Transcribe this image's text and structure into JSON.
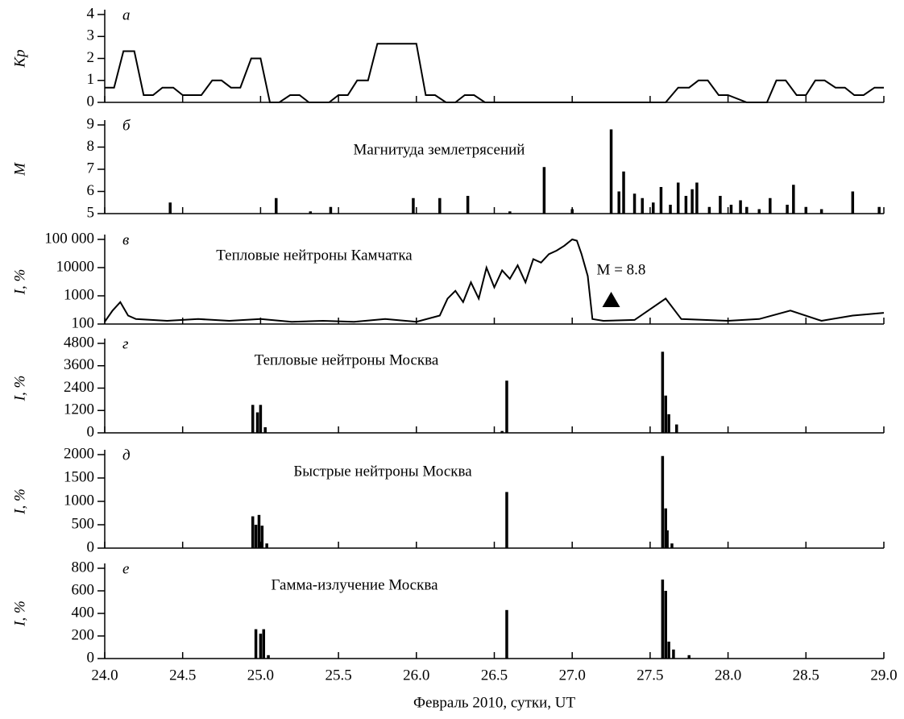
{
  "chart_data": [
    {
      "type": "line",
      "panel": "а",
      "ylabel": "Kp",
      "xlim": [
        24,
        29
      ],
      "ylim": [
        0,
        4
      ],
      "yticks": [
        0,
        1,
        2,
        3,
        4
      ],
      "color": "#000000",
      "x": [
        24.0,
        24.06,
        24.12,
        24.19,
        24.25,
        24.31,
        24.37,
        24.44,
        24.5,
        24.56,
        24.62,
        24.69,
        24.75,
        24.81,
        24.87,
        24.94,
        25.0,
        25.06,
        25.12,
        25.19,
        25.25,
        25.31,
        25.37,
        25.44,
        25.5,
        25.56,
        25.62,
        25.69,
        25.75,
        25.81,
        25.87,
        25.94,
        26.0,
        26.06,
        26.12,
        26.19,
        26.25,
        26.31,
        26.37,
        26.44,
        26.5,
        27.6,
        27.68,
        27.75,
        27.81,
        27.87,
        27.94,
        28.0,
        28.12,
        28.19,
        28.25,
        28.31,
        28.37,
        28.44,
        28.5,
        28.56,
        28.62,
        28.69,
        28.75,
        28.81,
        28.87,
        28.94,
        29.0
      ],
      "values": [
        0.67,
        0.67,
        2.33,
        2.33,
        0.33,
        0.33,
        0.67,
        0.67,
        0.33,
        0.33,
        0.33,
        1.0,
        1.0,
        0.67,
        0.67,
        2.0,
        2.0,
        0,
        0,
        0.33,
        0.33,
        0,
        0,
        0,
        0.33,
        0.33,
        1.0,
        1.0,
        2.67,
        2.67,
        2.67,
        2.67,
        2.67,
        0.33,
        0.33,
        0,
        0,
        0.33,
        0.33,
        0,
        0,
        0,
        0.67,
        0.67,
        1.0,
        1.0,
        0.33,
        0.33,
        0,
        0,
        0,
        1.0,
        1.0,
        0.33,
        0.33,
        1.0,
        1.0,
        0.67,
        0.67,
        0.33,
        0.33,
        0.67,
        0.67
      ]
    },
    {
      "type": "spike",
      "panel": "б",
      "ylabel": "M",
      "annotation": "Магнитуда землетрясений",
      "xlim": [
        24,
        29
      ],
      "ylim": [
        5,
        9
      ],
      "yticks": [
        5,
        6,
        7,
        8,
        9
      ],
      "color": "#000000",
      "x": [
        24.42,
        25.1,
        25.32,
        25.45,
        25.98,
        26.15,
        26.33,
        26.6,
        26.82,
        27.0,
        27.25,
        27.3,
        27.33,
        27.4,
        27.45,
        27.52,
        27.57,
        27.63,
        27.68,
        27.73,
        27.77,
        27.8,
        27.88,
        27.95,
        28.02,
        28.08,
        28.12,
        28.2,
        28.27,
        28.38,
        28.42,
        28.5,
        28.6,
        28.8,
        28.97
      ],
      "values": [
        5.5,
        5.7,
        5.1,
        5.3,
        5.7,
        5.7,
        5.8,
        5.1,
        7.1,
        5.2,
        8.8,
        6.0,
        6.9,
        5.9,
        5.7,
        5.5,
        6.2,
        5.4,
        6.4,
        5.8,
        6.1,
        6.4,
        5.3,
        5.8,
        5.4,
        5.6,
        5.3,
        5.2,
        5.7,
        5.4,
        6.3,
        5.3,
        5.2,
        6.0,
        5.3
      ]
    },
    {
      "type": "line",
      "panel": "в",
      "ylabel": "I, %",
      "annotation": "Тепловые нейтроны Камчатка",
      "event": {
        "text": "M = 8.8",
        "x": 27.25
      },
      "log_y": true,
      "xlim": [
        24,
        29
      ],
      "ylim": [
        100,
        100000
      ],
      "yticks": [
        100,
        1000,
        10000,
        {
          "value": 100000,
          "label": "100 000"
        }
      ],
      "color": "#000000",
      "x": [
        24.0,
        24.05,
        24.1,
        24.15,
        24.2,
        24.4,
        24.6,
        24.8,
        25.0,
        25.2,
        25.4,
        25.6,
        25.8,
        26.0,
        26.15,
        26.2,
        26.25,
        26.3,
        26.35,
        26.4,
        26.45,
        26.5,
        26.55,
        26.6,
        26.65,
        26.7,
        26.75,
        26.8,
        26.85,
        26.9,
        26.95,
        27.0,
        27.03,
        27.06,
        27.1,
        27.13,
        27.2,
        27.4,
        27.6,
        27.7,
        28.0,
        28.2,
        28.4,
        28.6,
        28.8,
        29.0
      ],
      "values": [
        120,
        300,
        600,
        200,
        150,
        130,
        150,
        130,
        150,
        120,
        130,
        120,
        150,
        120,
        200,
        800,
        1500,
        600,
        3000,
        800,
        10000,
        2000,
        8000,
        4000,
        12000,
        3000,
        20000,
        15000,
        30000,
        40000,
        60000,
        100000,
        90000,
        30000,
        5000,
        150,
        130,
        140,
        800,
        150,
        130,
        150,
        300,
        130,
        200,
        250
      ]
    },
    {
      "type": "spike",
      "panel": "г",
      "ylabel": "I, %",
      "annotation": "Тепловые нейтроны Москва",
      "xlim": [
        24,
        29
      ],
      "ylim": [
        0,
        4800
      ],
      "yticks": [
        0,
        1200,
        2400,
        3600,
        4800
      ],
      "color": "#000000",
      "x": [
        24.95,
        24.98,
        25.0,
        25.03,
        26.55,
        26.58,
        27.58,
        27.6,
        27.62,
        27.67
      ],
      "values": [
        1500,
        1100,
        1500,
        300,
        100,
        2800,
        4350,
        2000,
        1000,
        450
      ]
    },
    {
      "type": "spike",
      "panel": "д",
      "ylabel": "I, %",
      "annotation": "Быстрые нейтроны Москва",
      "xlim": [
        24,
        29
      ],
      "ylim": [
        0,
        2000
      ],
      "yticks": [
        0,
        500,
        1000,
        1500,
        2000
      ],
      "color": "#000000",
      "x": [
        24.95,
        24.97,
        24.99,
        25.01,
        25.04,
        26.58,
        27.58,
        27.6,
        27.61,
        27.64
      ],
      "values": [
        680,
        500,
        710,
        480,
        100,
        1200,
        1970,
        850,
        380,
        100
      ]
    },
    {
      "type": "spike",
      "panel": "е",
      "ylabel": "I, %",
      "annotation": "Гамма-излучение Москва",
      "xlabel": "Февраль 2010, сутки, UT",
      "xlim": [
        24,
        29
      ],
      "ylim": [
        0,
        800
      ],
      "yticks": [
        0,
        200,
        400,
        600,
        800
      ],
      "xticks": [
        {
          "value": 24,
          "label": "24.0"
        },
        24.5,
        {
          "value": 25,
          "label": "25.0"
        },
        25.5,
        {
          "value": 26,
          "label": "26.0"
        },
        26.5,
        {
          "value": 27,
          "label": "27.0"
        },
        27.5,
        {
          "value": 28,
          "label": "28.0"
        },
        28.5,
        {
          "value": 29,
          "label": "29.0"
        }
      ],
      "color": "#000000",
      "x": [
        24.97,
        25.0,
        25.02,
        25.05,
        26.58,
        27.58,
        27.6,
        27.62,
        27.65,
        27.75
      ],
      "values": [
        260,
        220,
        260,
        30,
        430,
        700,
        600,
        150,
        80,
        30
      ]
    }
  ]
}
